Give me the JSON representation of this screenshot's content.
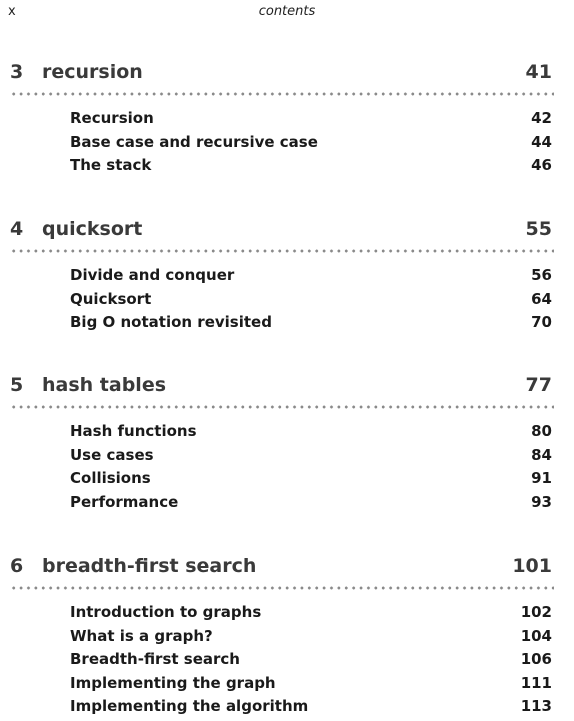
{
  "header": {
    "page_number": "x",
    "running_head": "contents"
  },
  "chapters": [
    {
      "number": "3",
      "title": "recursion",
      "page": "41",
      "entries": [
        {
          "title": "Recursion",
          "page": "42"
        },
        {
          "title": "Base case and recursive case",
          "page": "44"
        },
        {
          "title": "The stack",
          "page": "46"
        }
      ]
    },
    {
      "number": "4",
      "title": "quicksort",
      "page": "55",
      "entries": [
        {
          "title": "Divide and conquer",
          "page": "56"
        },
        {
          "title": "Quicksort",
          "page": "64"
        },
        {
          "title": "Big O notation revisited",
          "page": "70"
        }
      ]
    },
    {
      "number": "5",
      "title": "hash tables",
      "page": "77",
      "entries": [
        {
          "title": "Hash functions",
          "page": "80"
        },
        {
          "title": "Use cases",
          "page": "84"
        },
        {
          "title": "Collisions",
          "page": "91"
        },
        {
          "title": "Performance",
          "page": "93"
        }
      ]
    },
    {
      "number": "6",
      "title": "breadth-first search",
      "page": "101",
      "entries": [
        {
          "title": "Introduction to graphs",
          "page": "102"
        },
        {
          "title": "What is a graph?",
          "page": "104"
        },
        {
          "title": "Breadth-first search",
          "page": "106"
        },
        {
          "title": "Implementing the graph",
          "page": "111"
        },
        {
          "title": "Implementing the algorithm",
          "page": "113"
        }
      ]
    }
  ]
}
